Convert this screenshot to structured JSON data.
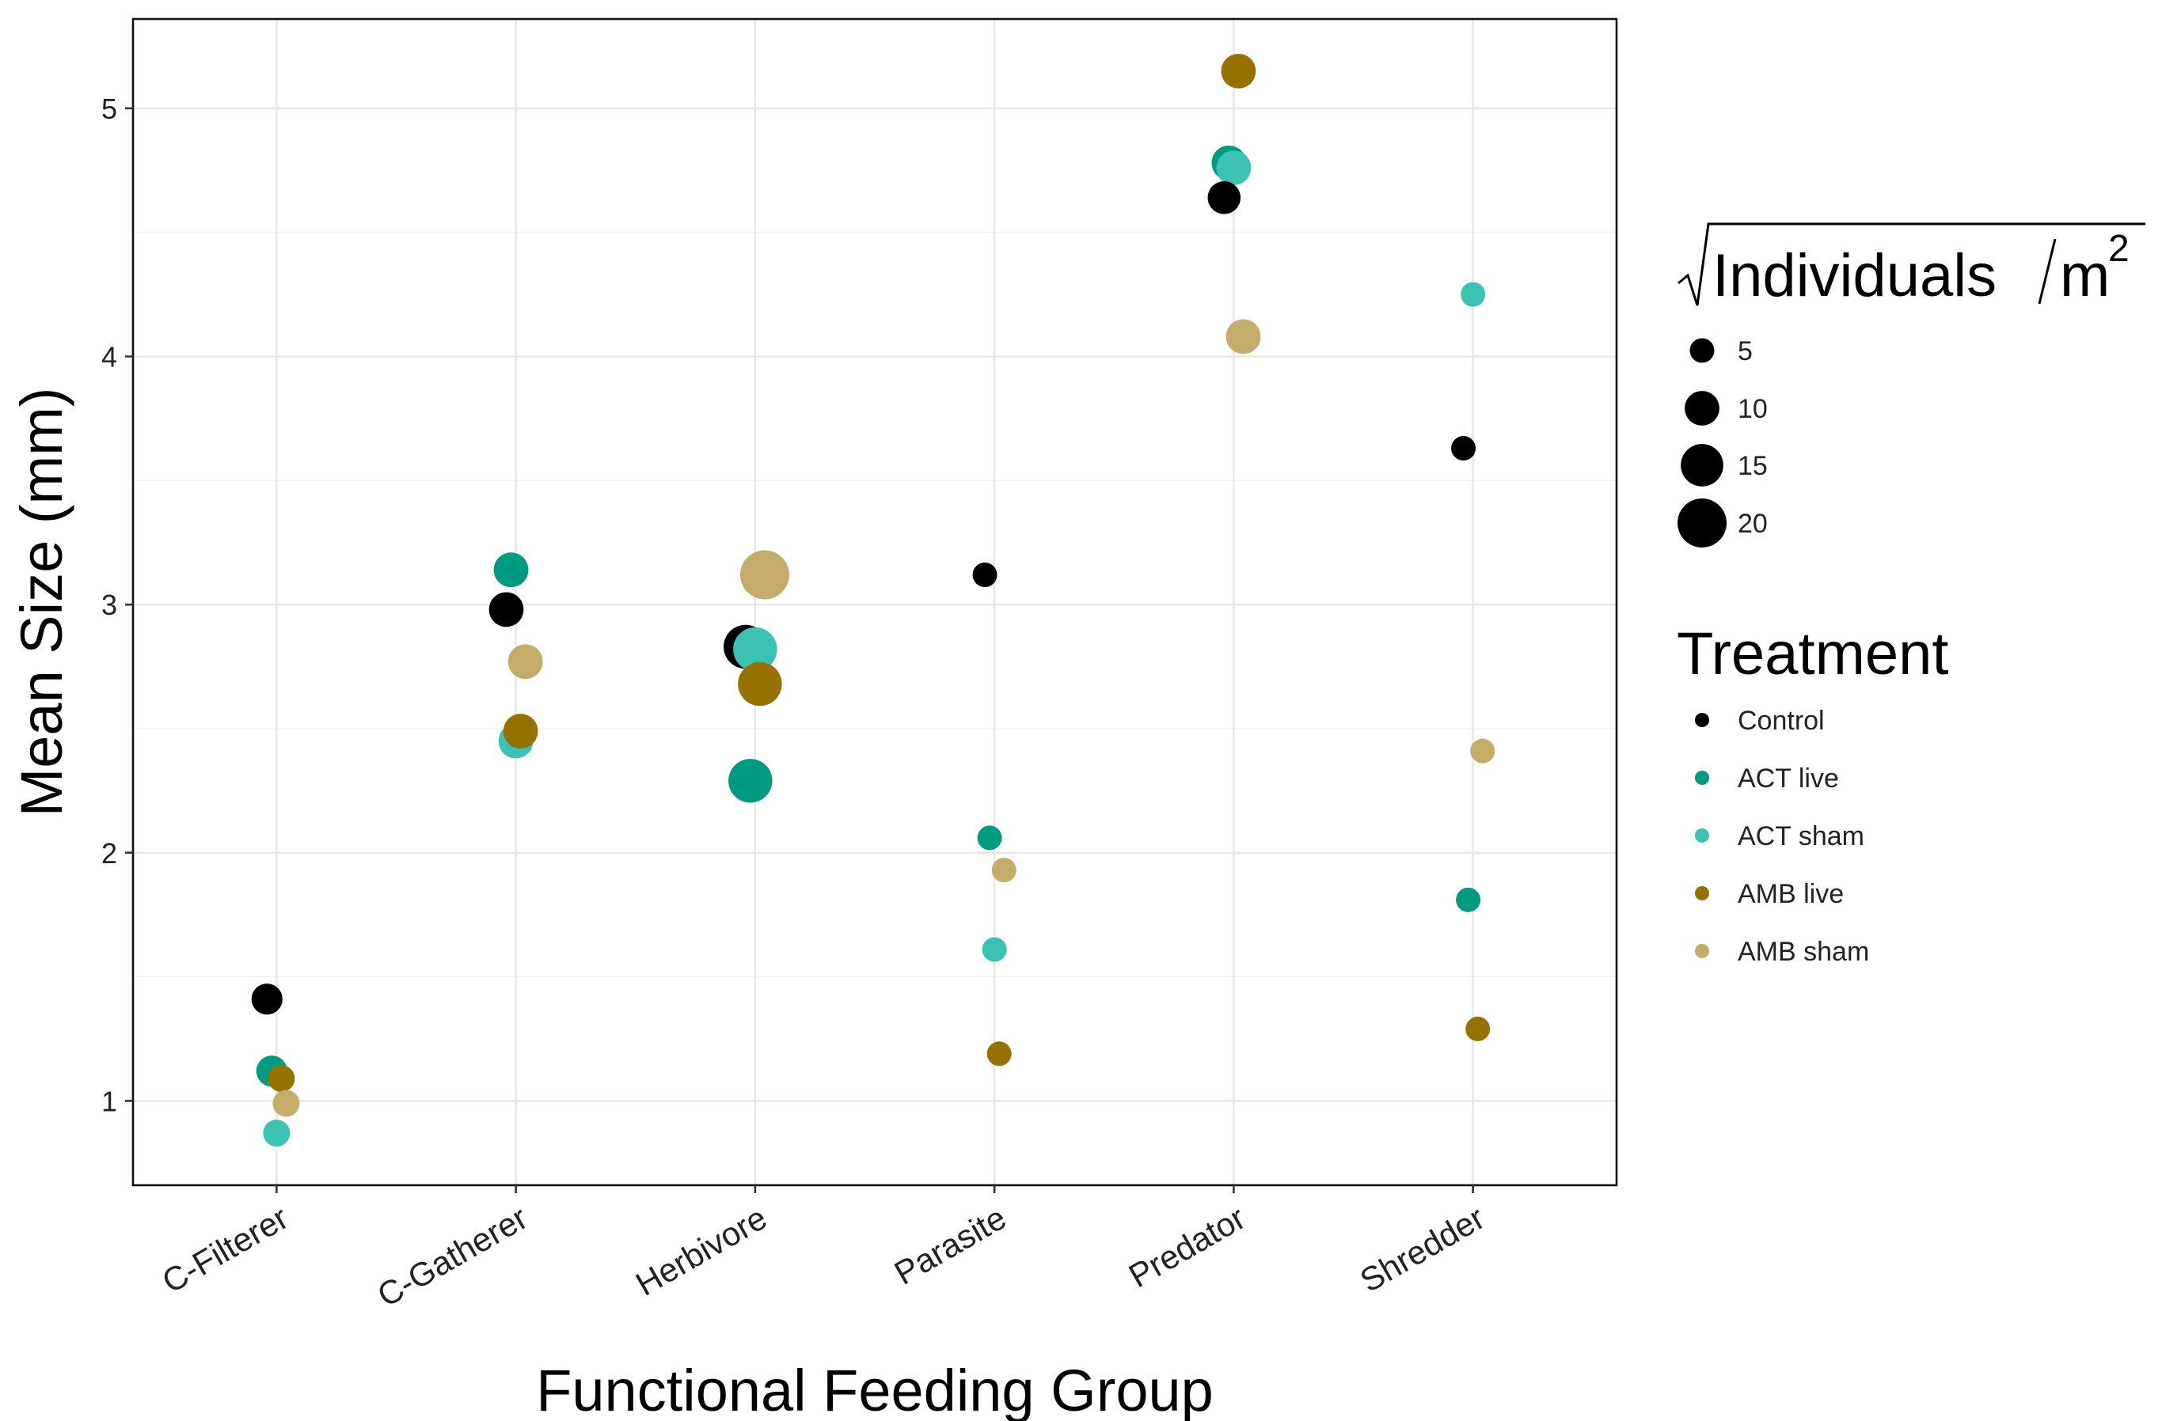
{
  "chart_data": {
    "type": "scatter",
    "xlabel": "Functional Feeding Group",
    "ylabel": "Mean Size (mm)",
    "categories": [
      "C-Filterer",
      "C-Gatherer",
      "Herbivore",
      "Parasite",
      "Predator",
      "Shredder"
    ],
    "ylim": [
      0.66,
      5.36
    ],
    "yticks": [
      1,
      2,
      3,
      4,
      5
    ],
    "grid": true,
    "legend_position": "right",
    "size_legend": {
      "title_main": "Individuals",
      "title_unit": "m",
      "title_exponent": "2",
      "values": [
        5,
        10,
        15,
        20
      ]
    },
    "color_legend": {
      "title": "Treatment",
      "entries": [
        "Control",
        "ACT live",
        "ACT sham",
        "AMB live",
        "AMB sham"
      ]
    },
    "colors": {
      "Control": "#000000",
      "ACT live": "#009A80",
      "ACT sham": "#3CC2B2",
      "AMB live": "#957200",
      "AMB sham": "#C4AC6A"
    },
    "series": [
      {
        "name": "Control",
        "values": [
          1.41,
          2.98,
          2.83,
          3.12,
          4.64,
          3.63
        ],
        "sizes": [
          8,
          10,
          16,
          5,
          9,
          5
        ]
      },
      {
        "name": "ACT live",
        "values": [
          1.12,
          3.14,
          2.29,
          2.06,
          4.78,
          1.81
        ],
        "sizes": [
          8,
          10,
          16,
          5,
          10,
          5
        ]
      },
      {
        "name": "ACT sham",
        "values": [
          0.87,
          2.45,
          2.82,
          1.61,
          4.76,
          4.25
        ],
        "sizes": [
          6,
          10,
          16,
          5,
          10,
          5
        ]
      },
      {
        "name": "AMB live",
        "values": [
          1.09,
          2.49,
          2.68,
          1.19,
          5.15,
          1.29
        ],
        "sizes": [
          6,
          10,
          16,
          5,
          10,
          5
        ]
      },
      {
        "name": "AMB sham",
        "values": [
          0.99,
          2.77,
          3.12,
          1.93,
          4.08,
          2.41
        ],
        "sizes": [
          6,
          10,
          20,
          5,
          10,
          5
        ]
      }
    ],
    "x_offsets": {
      "Control": -0.04,
      "ACT live": -0.02,
      "ACT sham": 0.0,
      "AMB live": 0.02,
      "AMB sham": 0.04
    }
  }
}
